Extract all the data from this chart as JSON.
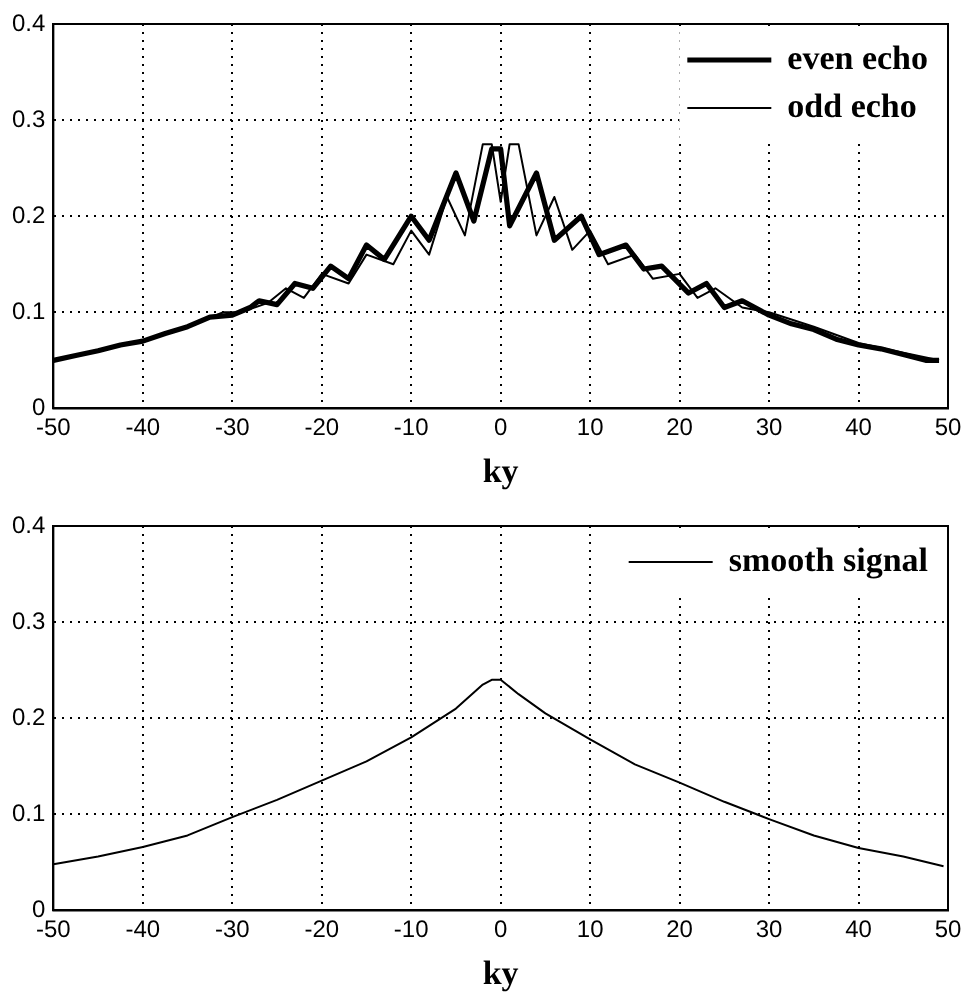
{
  "chart_data": [
    {
      "type": "line",
      "xlabel": "ky",
      "xlim": [
        -50,
        50
      ],
      "xticks": [
        -50,
        -40,
        -30,
        -20,
        -10,
        0,
        10,
        20,
        30,
        40,
        50
      ],
      "ylim": [
        0,
        0.4
      ],
      "yticks": [
        0,
        0.1,
        0.2,
        0.3,
        0.4
      ],
      "grid": true,
      "legend": "top right",
      "series": [
        {
          "name": "even echo",
          "color": "#000000",
          "x": [
            -50,
            -47.5,
            -45,
            -42.5,
            -40,
            -37.5,
            -35,
            -32.5,
            -30,
            -28,
            -27,
            -25,
            -23,
            -21,
            -19,
            -17,
            -15,
            -13,
            -10,
            -8,
            -5,
            -3,
            -1,
            0,
            1,
            4,
            6,
            9,
            11,
            14,
            16,
            18,
            21,
            23,
            25,
            27,
            30,
            32.5,
            35,
            37.5,
            40,
            42.5,
            45,
            47.5,
            49
          ],
          "values": [
            0.05,
            0.055,
            0.06,
            0.066,
            0.07,
            0.078,
            0.085,
            0.095,
            0.097,
            0.105,
            0.112,
            0.108,
            0.13,
            0.125,
            0.148,
            0.135,
            0.17,
            0.155,
            0.2,
            0.175,
            0.245,
            0.195,
            0.27,
            0.27,
            0.19,
            0.245,
            0.175,
            0.2,
            0.16,
            0.17,
            0.145,
            0.148,
            0.12,
            0.13,
            0.105,
            0.112,
            0.097,
            0.088,
            0.082,
            0.072,
            0.066,
            0.062,
            0.056,
            0.05,
            0.05
          ]
        },
        {
          "name": "odd echo",
          "color": "#000000",
          "x": [
            -50,
            -45,
            -40,
            -35,
            -31,
            -29,
            -26,
            -24,
            -22,
            -20,
            -17,
            -15,
            -12,
            -10,
            -8,
            -6,
            -4,
            -2,
            -1,
            0,
            1,
            2,
            4,
            6,
            8,
            10,
            12,
            15,
            17,
            20,
            22,
            24,
            27,
            30,
            35,
            40,
            45,
            49
          ],
          "values": [
            0.05,
            0.06,
            0.07,
            0.085,
            0.1,
            0.1,
            0.11,
            0.125,
            0.115,
            0.14,
            0.13,
            0.16,
            0.15,
            0.185,
            0.16,
            0.22,
            0.18,
            0.275,
            0.275,
            0.215,
            0.275,
            0.275,
            0.18,
            0.22,
            0.165,
            0.185,
            0.15,
            0.16,
            0.135,
            0.14,
            0.115,
            0.125,
            0.105,
            0.1,
            0.085,
            0.068,
            0.058,
            0.05
          ]
        }
      ]
    },
    {
      "type": "line",
      "xlabel": "ky",
      "xlim": [
        -50,
        50
      ],
      "xticks": [
        -50,
        -40,
        -30,
        -20,
        -10,
        0,
        10,
        20,
        30,
        40,
        50
      ],
      "ylim": [
        0,
        0.4
      ],
      "yticks": [
        0,
        0.1,
        0.2,
        0.3,
        0.4
      ],
      "grid": true,
      "legend": "top right",
      "series": [
        {
          "name": "smooth signal",
          "color": "#000000",
          "x": [
            -50,
            -45,
            -40,
            -35,
            -30,
            -25,
            -20,
            -15,
            -10,
            -5,
            -2,
            -1,
            0,
            2,
            5,
            10,
            15,
            20,
            25,
            30,
            35,
            40,
            45,
            49.5
          ],
          "values": [
            0.048,
            0.056,
            0.066,
            0.078,
            0.097,
            0.115,
            0.135,
            0.155,
            0.18,
            0.21,
            0.235,
            0.24,
            0.24,
            0.225,
            0.205,
            0.178,
            0.152,
            0.133,
            0.113,
            0.095,
            0.078,
            0.065,
            0.056,
            0.046
          ]
        }
      ]
    }
  ]
}
